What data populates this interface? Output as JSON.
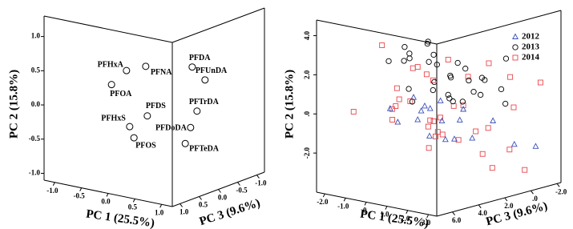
{
  "chart_data": [
    {
      "type": "scatter3d",
      "xlabel": "PC 1 (25.5%)",
      "ylabel": "PC 2 (15.8%)",
      "zlabel": "PC 3 (9.6%)",
      "xlim": [
        -1.2,
        1.2
      ],
      "ylim": [
        -1.1,
        1.3
      ],
      "zlim": [
        -1.2,
        1.2
      ],
      "xticks": [
        {
          "value": -1,
          "label": "-1.0"
        },
        {
          "value": -0.5,
          "label": "-0.5"
        },
        {
          "value": 0,
          "label": "0.0"
        },
        {
          "value": 0.5,
          "label": "0.5"
        },
        {
          "value": 1,
          "label": "1.0"
        }
      ],
      "yticks": [
        {
          "value": -1,
          "label": "-1.0"
        },
        {
          "value": -0.5,
          "label": "-0.5"
        },
        {
          "value": 0,
          "label": "0.0"
        },
        {
          "value": 0.5,
          "label": "0.5"
        },
        {
          "value": 1,
          "label": "1.0"
        }
      ],
      "zticks": [
        {
          "value": -1,
          "label": "-1.0"
        },
        {
          "value": -0.5,
          "label": "-0.5"
        },
        {
          "value": 0,
          "label": "0.0"
        },
        {
          "value": 0.5,
          "label": "0.5"
        },
        {
          "value": 1,
          "label": "1.0"
        }
      ],
      "color": "#000000",
      "labels": [
        "PFHxA",
        "PFOA",
        "PFNA",
        "PFDA",
        "PFUnDA",
        "PFDS",
        "PFTrDA",
        "PFHxS",
        "PFOS",
        "PFDoDA",
        "PFTeDA"
      ],
      "x": [
        -0.52,
        -0.8,
        -0.16,
        0.71,
        0.95,
        -0.13,
        0.8,
        -0.46,
        -0.38,
        0.68,
        0.58
      ],
      "y": [
        0.36,
        0.11,
        0.48,
        0.61,
        0.46,
        -0.24,
        -0.02,
        -0.45,
        -0.6,
        -0.28,
        -0.53
      ],
      "z": [
        0,
        0,
        0,
        0,
        0,
        0,
        0,
        0,
        0,
        0,
        0
      ]
    },
    {
      "type": "scatter3d",
      "xlabel": "PC 1 (25.5%)",
      "ylabel": "PC 2 (15.8%)",
      "zlabel": "PC 3 (9.6%)",
      "xlim": [
        -2.4,
        3.4
      ],
      "ylim": [
        -4,
        4.8
      ],
      "zlim": [
        -2.3,
        7.2
      ],
      "xticks": [
        {
          "value": -2,
          "label": "-2.0"
        },
        {
          "value": -1,
          "label": "-1.0"
        },
        {
          "value": 0,
          "label": ".0"
        },
        {
          "value": 1,
          "label": "1.0"
        },
        {
          "value": 2,
          "label": "2.0"
        },
        {
          "value": 3,
          "label": "3.0"
        }
      ],
      "yticks": [
        {
          "value": -2,
          "label": "-2.0"
        },
        {
          "value": 0,
          "label": ".0"
        },
        {
          "value": 2,
          "label": "2.0"
        },
        {
          "value": 4,
          "label": "4.0"
        }
      ],
      "zticks": [
        {
          "value": -2,
          "label": "-2.0"
        },
        {
          "value": 0,
          "label": ".0"
        },
        {
          "value": 2,
          "label": "2.0"
        },
        {
          "value": 4,
          "label": "4.0"
        },
        {
          "value": 6,
          "label": "6.0"
        }
      ],
      "legend": "upper right",
      "series": [
        {
          "name": "2012",
          "color": "#3a4fb8",
          "marker": "triangle",
          "x": [
            -1.5,
            -1,
            -0.5,
            0,
            0.3,
            0.6,
            1,
            1.4,
            1.8,
            2.2,
            -0.8,
            0.4,
            1.2,
            2.6,
            0.8,
            -0.2,
            1.6,
            3.0
          ],
          "y": [
            -0.3,
            0.2,
            -0.6,
            -0.1,
            0.3,
            -0.8,
            -0.4,
            0.1,
            -1.0,
            -0.5,
            -0.9,
            -1.3,
            -1.6,
            -1.8,
            0.5,
            -0.2,
            -1.2,
            -2.0
          ],
          "z": [
            3,
            2,
            4,
            3,
            2,
            1,
            3,
            2,
            4,
            1,
            2,
            3,
            1,
            0,
            4,
            2,
            3,
            -1
          ]
        },
        {
          "name": "2013",
          "color": "#000000",
          "marker": "circle",
          "x": [
            -1.2,
            -0.8,
            -0.5,
            -0.2,
            0,
            0.3,
            0.5,
            0.8,
            1.0,
            1.3,
            1.5,
            1.8,
            2.0,
            2.3,
            2.6,
            -0.6,
            0.2,
            0.9,
            1.6,
            2.2,
            -0.3,
            0.6,
            1.2,
            1.9,
            0.1,
            -2.2,
            0.4,
            1.4,
            2.8,
            0.7
          ],
          "y": [
            2.4,
            3.0,
            1.8,
            2.6,
            1.2,
            3.4,
            2.1,
            1.6,
            2.8,
            1.0,
            2.2,
            1.5,
            0.8,
            1.9,
            1.2,
            0.9,
            0.6,
            0.4,
            0.7,
            2.5,
            3.2,
            2.9,
            1.4,
            1.1,
            0.2,
            1.8,
            1.0,
            2.0,
            0.5,
            3.1
          ],
          "z": [
            2,
            3,
            1,
            4,
            2,
            3,
            1,
            2,
            4,
            3,
            2,
            1,
            3,
            2,
            1,
            3,
            4,
            2,
            1,
            0,
            2,
            3,
            4,
            2,
            1,
            2,
            0,
            3,
            1,
            5
          ]
        },
        {
          "name": "2014",
          "color": "#e8474c",
          "marker": "square",
          "x": [
            -1.8,
            -1.4,
            -1,
            -0.6,
            -0.2,
            0.2,
            0.6,
            1,
            1.4,
            1.8,
            2.2,
            2.6,
            3.0,
            -1.2,
            -0.4,
            0.4,
            1.2,
            2.0,
            2.8,
            0,
            0.8,
            1.6,
            2.4,
            -0.8,
            3.2,
            1.0,
            -1.6,
            0.5,
            2.0,
            1.3,
            -2.0,
            2.6,
            0.1,
            1.7,
            3.1
          ],
          "y": [
            0.5,
            -0.3,
            1.2,
            0.2,
            -0.8,
            0.9,
            -0.5,
            1.5,
            0.3,
            -1.2,
            0.8,
            -0.6,
            -1.8,
            -2.2,
            2.0,
            -1.4,
            1.9,
            2.4,
            -2.6,
            3.8,
            -1.0,
            -0.2,
            1.6,
            1.8,
            0.4,
            -1.6,
            -1.5,
            0.1,
            -0.9,
            2.8,
            -0.2,
            1.0,
            0.6,
            -2.3,
            -3.0
          ],
          "z": [
            2,
            3,
            1,
            4,
            2,
            5,
            3,
            1,
            2,
            3,
            4,
            2,
            1,
            0,
            3,
            2,
            4,
            1,
            2,
            6,
            3,
            5,
            0,
            2,
            1,
            4,
            -1,
            6,
            2,
            3,
            5,
            -2,
            4,
            1,
            0
          ]
        }
      ]
    }
  ]
}
